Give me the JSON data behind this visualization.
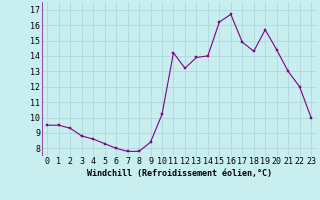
{
  "x": [
    0,
    1,
    2,
    3,
    4,
    5,
    6,
    7,
    8,
    9,
    10,
    11,
    12,
    13,
    14,
    15,
    16,
    17,
    18,
    19,
    20,
    21,
    22,
    23
  ],
  "y": [
    9.5,
    9.5,
    9.3,
    8.8,
    8.6,
    8.3,
    8.0,
    7.8,
    7.8,
    8.4,
    10.2,
    14.2,
    13.2,
    13.9,
    14.0,
    16.2,
    16.7,
    14.9,
    14.3,
    15.7,
    14.4,
    13.0,
    12.0,
    10.0
  ],
  "line_color": "#800080",
  "marker_color": "#800080",
  "bg_color": "#c8eef0",
  "grid_color": "#b0d8dc",
  "xlabel": "Windchill (Refroidissement éolien,°C)",
  "xlabel_fontsize": 6.0,
  "ylabel_ticks": [
    8,
    9,
    10,
    11,
    12,
    13,
    14,
    15,
    16,
    17
  ],
  "xtick_labels": [
    "0",
    "1",
    "2",
    "3",
    "4",
    "5",
    "6",
    "7",
    "8",
    "9",
    "10",
    "11",
    "12",
    "13",
    "14",
    "15",
    "16",
    "17",
    "18",
    "19",
    "20",
    "21",
    "22",
    "23"
  ],
  "ylim": [
    7.5,
    17.5
  ],
  "xlim": [
    -0.5,
    23.5
  ],
  "tick_fontsize": 6.0,
  "marker_size": 2.0,
  "line_width": 0.8
}
